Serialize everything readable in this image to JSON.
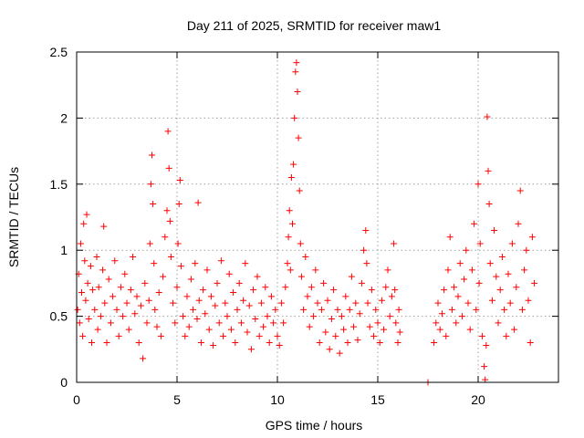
{
  "chart_data": {
    "type": "scatter",
    "title": "Day 211 of 2025, SRMTID for receiver maw1",
    "xlabel": "GPS time / hours",
    "ylabel": "SRMTID / TECUs",
    "xlim": [
      0,
      24
    ],
    "ylim": [
      0,
      2.5
    ],
    "x_ticks": [
      0,
      5,
      10,
      15,
      20
    ],
    "y_ticks": [
      0,
      0.5,
      1,
      1.5,
      2,
      2.5
    ],
    "x_tick_labels": [
      "0",
      "5",
      "10",
      "15",
      "20"
    ],
    "y_tick_labels": [
      "0",
      "0.5",
      "1",
      "1.5",
      "2",
      "2.5"
    ],
    "grid": true,
    "marker": "+",
    "color": "#ff0000",
    "series": [
      {
        "name": "maw1",
        "points": [
          [
            0.05,
            0.55
          ],
          [
            0.1,
            0.82
          ],
          [
            0.15,
            0.45
          ],
          [
            0.2,
            1.05
          ],
          [
            0.25,
            0.68
          ],
          [
            0.3,
            0.35
          ],
          [
            0.35,
            1.2
          ],
          [
            0.4,
            0.92
          ],
          [
            0.45,
            0.62
          ],
          [
            0.5,
            1.27
          ],
          [
            0.55,
            0.75
          ],
          [
            0.6,
            0.48
          ],
          [
            0.7,
            0.88
          ],
          [
            0.75,
            0.3
          ],
          [
            0.8,
            0.7
          ],
          [
            0.9,
            0.55
          ],
          [
            1.0,
            0.95
          ],
          [
            1.05,
            0.4
          ],
          [
            1.1,
            0.72
          ],
          [
            1.2,
            0.5
          ],
          [
            1.3,
            0.85
          ],
          [
            1.35,
            1.18
          ],
          [
            1.4,
            0.6
          ],
          [
            1.5,
            0.3
          ],
          [
            1.6,
            0.78
          ],
          [
            1.7,
            0.45
          ],
          [
            1.8,
            0.65
          ],
          [
            1.9,
            0.92
          ],
          [
            2.0,
            0.55
          ],
          [
            2.1,
            0.35
          ],
          [
            2.2,
            0.72
          ],
          [
            2.3,
            0.5
          ],
          [
            2.4,
            0.82
          ],
          [
            2.5,
            0.6
          ],
          [
            2.6,
            0.4
          ],
          [
            2.7,
            0.7
          ],
          [
            2.8,
            0.95
          ],
          [
            2.9,
            0.52
          ],
          [
            3.0,
            0.65
          ],
          [
            3.1,
            0.3
          ],
          [
            3.2,
            0.58
          ],
          [
            3.3,
            0.18
          ],
          [
            3.4,
            0.75
          ],
          [
            3.5,
            0.45
          ],
          [
            3.6,
            0.62
          ],
          [
            3.65,
            1.05
          ],
          [
            3.7,
            1.5
          ],
          [
            3.75,
            1.72
          ],
          [
            3.8,
            1.35
          ],
          [
            3.85,
            0.9
          ],
          [
            3.9,
            0.55
          ],
          [
            4.0,
            0.42
          ],
          [
            4.1,
            0.68
          ],
          [
            4.2,
            0.35
          ],
          [
            4.3,
            0.8
          ],
          [
            4.4,
            1.1
          ],
          [
            4.5,
            1.3
          ],
          [
            4.55,
            1.9
          ],
          [
            4.6,
            1.62
          ],
          [
            4.65,
            1.22
          ],
          [
            4.7,
            0.95
          ],
          [
            4.8,
            0.6
          ],
          [
            4.9,
            0.45
          ],
          [
            5.0,
            0.72
          ],
          [
            5.05,
            1.05
          ],
          [
            5.1,
            1.35
          ],
          [
            5.15,
            1.53
          ],
          [
            5.2,
            0.88
          ],
          [
            5.3,
            0.5
          ],
          [
            5.4,
            0.35
          ],
          [
            5.5,
            0.65
          ],
          [
            5.6,
            0.42
          ],
          [
            5.7,
            0.78
          ],
          [
            5.8,
            0.55
          ],
          [
            5.9,
            0.9
          ],
          [
            6.0,
            0.48
          ],
          [
            6.05,
            1.36
          ],
          [
            6.1,
            0.62
          ],
          [
            6.2,
            0.3
          ],
          [
            6.3,
            0.7
          ],
          [
            6.4,
            0.52
          ],
          [
            6.5,
            0.85
          ],
          [
            6.6,
            0.4
          ],
          [
            6.7,
            0.65
          ],
          [
            6.8,
            0.28
          ],
          [
            6.9,
            0.58
          ],
          [
            7.0,
            0.75
          ],
          [
            7.1,
            0.45
          ],
          [
            7.2,
            0.92
          ],
          [
            7.3,
            0.35
          ],
          [
            7.4,
            0.6
          ],
          [
            7.5,
            0.5
          ],
          [
            7.6,
            0.82
          ],
          [
            7.7,
            0.4
          ],
          [
            7.8,
            0.68
          ],
          [
            7.9,
            0.3
          ],
          [
            8.0,
            0.55
          ],
          [
            8.1,
            0.75
          ],
          [
            8.2,
            0.45
          ],
          [
            8.3,
            0.62
          ],
          [
            8.4,
            0.9
          ],
          [
            8.5,
            0.38
          ],
          [
            8.6,
            0.58
          ],
          [
            8.7,
            0.25
          ],
          [
            8.8,
            0.7
          ],
          [
            8.9,
            0.48
          ],
          [
            9.0,
            0.8
          ],
          [
            9.1,
            0.35
          ],
          [
            9.2,
            0.6
          ],
          [
            9.3,
            0.42
          ],
          [
            9.4,
            0.72
          ],
          [
            9.5,
            0.5
          ],
          [
            9.6,
            0.3
          ],
          [
            9.7,
            0.65
          ],
          [
            9.8,
            0.45
          ],
          [
            9.9,
            0.55
          ],
          [
            10.0,
            0.35
          ],
          [
            10.1,
            0.28
          ],
          [
            10.2,
            0.6
          ],
          [
            10.3,
            0.45
          ],
          [
            10.4,
            0.72
          ],
          [
            10.5,
            0.9
          ],
          [
            10.55,
            1.1
          ],
          [
            10.6,
            1.3
          ],
          [
            10.65,
            0.85
          ],
          [
            10.7,
            1.55
          ],
          [
            10.75,
            1.2
          ],
          [
            10.8,
            1.65
          ],
          [
            10.85,
            2.0
          ],
          [
            10.9,
            2.35
          ],
          [
            10.95,
            2.42
          ],
          [
            11.0,
            2.2
          ],
          [
            11.05,
            1.85
          ],
          [
            11.1,
            1.45
          ],
          [
            11.15,
            1.05
          ],
          [
            11.2,
            0.8
          ],
          [
            11.3,
            0.55
          ],
          [
            11.4,
            0.95
          ],
          [
            11.5,
            0.65
          ],
          [
            11.6,
            0.42
          ],
          [
            11.7,
            0.72
          ],
          [
            11.8,
            0.5
          ],
          [
            11.9,
            0.85
          ],
          [
            12.0,
            0.6
          ],
          [
            12.1,
            0.3
          ],
          [
            12.2,
            0.55
          ],
          [
            12.3,
            0.75
          ],
          [
            12.4,
            0.38
          ],
          [
            12.5,
            0.62
          ],
          [
            12.6,
            0.25
          ],
          [
            12.7,
            0.48
          ],
          [
            12.8,
            0.7
          ],
          [
            12.9,
            0.35
          ],
          [
            13.0,
            0.55
          ],
          [
            13.1,
            0.22
          ],
          [
            13.2,
            0.5
          ],
          [
            13.3,
            0.4
          ],
          [
            13.4,
            0.65
          ],
          [
            13.5,
            0.3
          ],
          [
            13.6,
            0.55
          ],
          [
            13.7,
            0.8
          ],
          [
            13.8,
            0.42
          ],
          [
            13.9,
            0.6
          ],
          [
            14.0,
            0.32
          ],
          [
            14.1,
            0.52
          ],
          [
            14.2,
            0.75
          ],
          [
            14.3,
            1.0
          ],
          [
            14.4,
            1.15
          ],
          [
            14.45,
            0.9
          ],
          [
            14.5,
            0.6
          ],
          [
            14.6,
            0.42
          ],
          [
            14.7,
            0.7
          ],
          [
            14.8,
            0.35
          ],
          [
            14.9,
            0.55
          ],
          [
            15.0,
            0.45
          ],
          [
            15.1,
            0.3
          ],
          [
            15.2,
            0.62
          ],
          [
            15.3,
            0.4
          ],
          [
            15.4,
            0.72
          ],
          [
            15.5,
            0.85
          ],
          [
            15.6,
            0.5
          ],
          [
            15.7,
            0.65
          ],
          [
            15.8,
            1.05
          ],
          [
            15.85,
            0.7
          ],
          [
            15.9,
            0.45
          ],
          [
            16.0,
            0.3
          ],
          [
            16.05,
            0.55
          ],
          [
            16.1,
            0.38
          ],
          [
            17.5,
            0.0
          ],
          [
            17.8,
            0.3
          ],
          [
            17.9,
            0.45
          ],
          [
            18.0,
            0.6
          ],
          [
            18.1,
            0.4
          ],
          [
            18.2,
            0.52
          ],
          [
            18.3,
            0.7
          ],
          [
            18.4,
            0.35
          ],
          [
            18.5,
            0.85
          ],
          [
            18.6,
            1.1
          ],
          [
            18.7,
            0.55
          ],
          [
            18.8,
            0.72
          ],
          [
            18.9,
            0.45
          ],
          [
            19.0,
            0.65
          ],
          [
            19.1,
            0.9
          ],
          [
            19.2,
            0.5
          ],
          [
            19.3,
            0.78
          ],
          [
            19.4,
            1.0
          ],
          [
            19.5,
            0.6
          ],
          [
            19.6,
            0.4
          ],
          [
            19.7,
            0.85
          ],
          [
            19.8,
            1.2
          ],
          [
            19.9,
            0.55
          ],
          [
            20.0,
            1.5
          ],
          [
            20.05,
            0.75
          ],
          [
            20.1,
            1.05
          ],
          [
            20.2,
            0.35
          ],
          [
            20.3,
            0.12
          ],
          [
            20.35,
            0.02
          ],
          [
            20.4,
            0.28
          ],
          [
            20.45,
            2.01
          ],
          [
            20.5,
            1.6
          ],
          [
            20.55,
            1.35
          ],
          [
            20.6,
            0.9
          ],
          [
            20.7,
            0.62
          ],
          [
            20.8,
            1.15
          ],
          [
            20.9,
            0.8
          ],
          [
            21.0,
            0.45
          ],
          [
            21.1,
            0.7
          ],
          [
            21.2,
            0.95
          ],
          [
            21.3,
            0.55
          ],
          [
            21.4,
            0.35
          ],
          [
            21.5,
            0.82
          ],
          [
            21.6,
            0.6
          ],
          [
            21.7,
            1.05
          ],
          [
            21.8,
            0.4
          ],
          [
            21.9,
            0.72
          ],
          [
            22.0,
            1.2
          ],
          [
            22.1,
            1.45
          ],
          [
            22.2,
            0.55
          ],
          [
            22.3,
            0.85
          ],
          [
            22.4,
            1.0
          ],
          [
            22.5,
            0.62
          ],
          [
            22.6,
            0.3
          ],
          [
            22.7,
            1.1
          ],
          [
            22.8,
            0.75
          ]
        ]
      }
    ]
  }
}
